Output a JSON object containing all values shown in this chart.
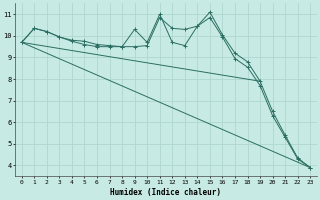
{
  "xlabel": "Humidex (Indice chaleur)",
  "xlim": [
    -0.5,
    23.5
  ],
  "ylim": [
    3.5,
    11.5
  ],
  "xticks": [
    0,
    1,
    2,
    3,
    4,
    5,
    6,
    7,
    8,
    9,
    10,
    11,
    12,
    13,
    14,
    15,
    16,
    17,
    18,
    19,
    20,
    21,
    22,
    23
  ],
  "yticks": [
    4,
    5,
    6,
    7,
    8,
    9,
    10,
    11
  ],
  "bg_color": "#c8eae4",
  "line_color": "#2a6e62",
  "grid_color": "#aed8d0",
  "lines": [
    {
      "x": [
        0,
        1,
        2,
        3,
        4,
        5,
        6,
        7,
        8,
        9,
        10,
        11,
        12,
        13,
        14,
        15,
        16,
        17,
        18,
        19,
        20,
        21,
        22,
        23
      ],
      "y": [
        9.7,
        10.35,
        10.2,
        9.95,
        9.8,
        9.75,
        9.6,
        9.55,
        9.5,
        10.3,
        9.7,
        11.0,
        9.7,
        9.55,
        10.45,
        11.1,
        10.05,
        9.2,
        8.8,
        7.9,
        6.5,
        5.4,
        4.35,
        3.9
      ],
      "marker": true
    },
    {
      "x": [
        0,
        1,
        2,
        3,
        4,
        5,
        6,
        7,
        8,
        9,
        10,
        11,
        12,
        13,
        14,
        15,
        16,
        17,
        18,
        19,
        20,
        21,
        22,
        23
      ],
      "y": [
        9.7,
        10.35,
        10.2,
        9.95,
        9.75,
        9.6,
        9.5,
        9.5,
        9.5,
        9.5,
        9.55,
        10.85,
        10.35,
        10.3,
        10.45,
        10.85,
        9.95,
        8.95,
        8.55,
        7.7,
        6.3,
        5.3,
        4.3,
        3.9
      ],
      "marker": true
    },
    {
      "x": [
        0,
        19
      ],
      "y": [
        9.7,
        7.9
      ],
      "marker": false
    },
    {
      "x": [
        0,
        23
      ],
      "y": [
        9.7,
        3.9
      ],
      "marker": false
    }
  ]
}
